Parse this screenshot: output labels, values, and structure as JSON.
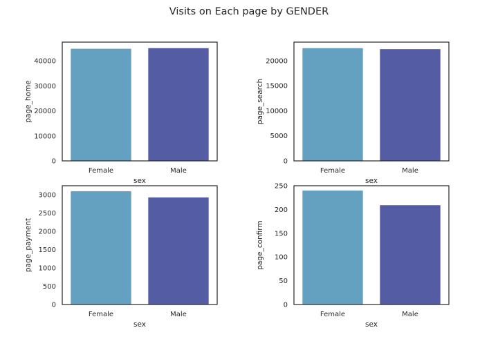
{
  "figure": {
    "title": "Visits on Each page by GENDER"
  },
  "colors": {
    "female_bar": "#64a1c1",
    "male_bar": "#545ca3",
    "axis": "#262626",
    "text": "#262626"
  },
  "chart_data": [
    {
      "type": "bar",
      "categories": [
        "Female",
        "Male"
      ],
      "values": [
        44850,
        45090
      ],
      "xlabel": "sex",
      "ylabel": "page_home",
      "ylim": [
        0,
        47500
      ],
      "yticks": [
        0,
        10000,
        20000,
        30000,
        40000
      ],
      "grid": false
    },
    {
      "type": "bar",
      "categories": [
        "Female",
        "Male"
      ],
      "values": [
        22500,
        22300
      ],
      "xlabel": "sex",
      "ylabel": "page_search",
      "ylim": [
        0,
        23700
      ],
      "yticks": [
        0,
        5000,
        10000,
        15000,
        20000
      ],
      "grid": false
    },
    {
      "type": "bar",
      "categories": [
        "Female",
        "Male"
      ],
      "values": [
        3100,
        2930
      ],
      "xlabel": "sex",
      "ylabel": "page_payment",
      "ylim": [
        0,
        3250
      ],
      "yticks": [
        0,
        500,
        1000,
        1500,
        2000,
        2500,
        3000
      ],
      "grid": false
    },
    {
      "type": "bar",
      "categories": [
        "Female",
        "Male"
      ],
      "values": [
        240,
        209
      ],
      "xlabel": "sex",
      "ylabel": "page_confirm",
      "ylim": [
        0,
        250
      ],
      "yticks": [
        0,
        50,
        100,
        150,
        200,
        250
      ],
      "grid": false
    }
  ]
}
